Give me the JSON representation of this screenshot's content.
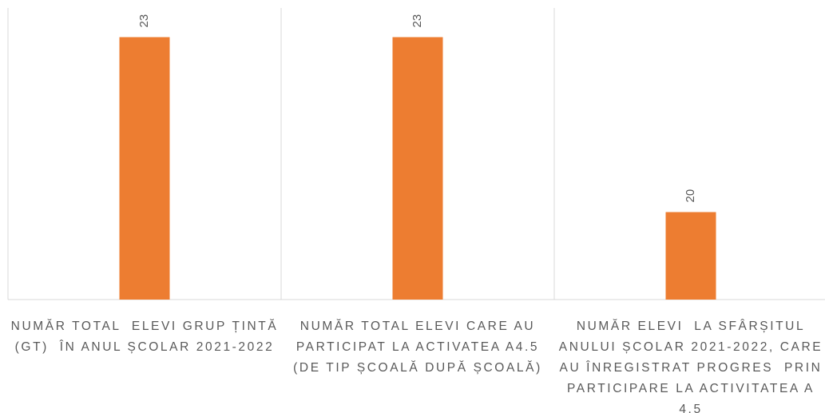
{
  "chart_data": {
    "type": "bar",
    "categories": [
      "NUMĂR TOTAL  ELEVI GRUP ȚINTĂ (GT)  ÎN ANUL ȘCOLAR 2021-2022",
      "NUMĂR TOTAL ELEVI CARE AU PARTICIPAT LA ACTIVATEA A4.5 (DE TIP ȘCOALĂ DUPĂ ȘCOALĂ)",
      "NUMĂR ELEVI  LA SFÂRȘITUL ANULUI ȘCOLAR 2021-2022, CARE AU ÎNREGISTRAT PROGRES  PRIN PARTICIPARE LA ACTIVITATEA A 4.5"
    ],
    "values": [
      23,
      23,
      20
    ],
    "color": "#ed7d31",
    "ylim": [
      18.5,
      23.5
    ],
    "grid": true
  }
}
